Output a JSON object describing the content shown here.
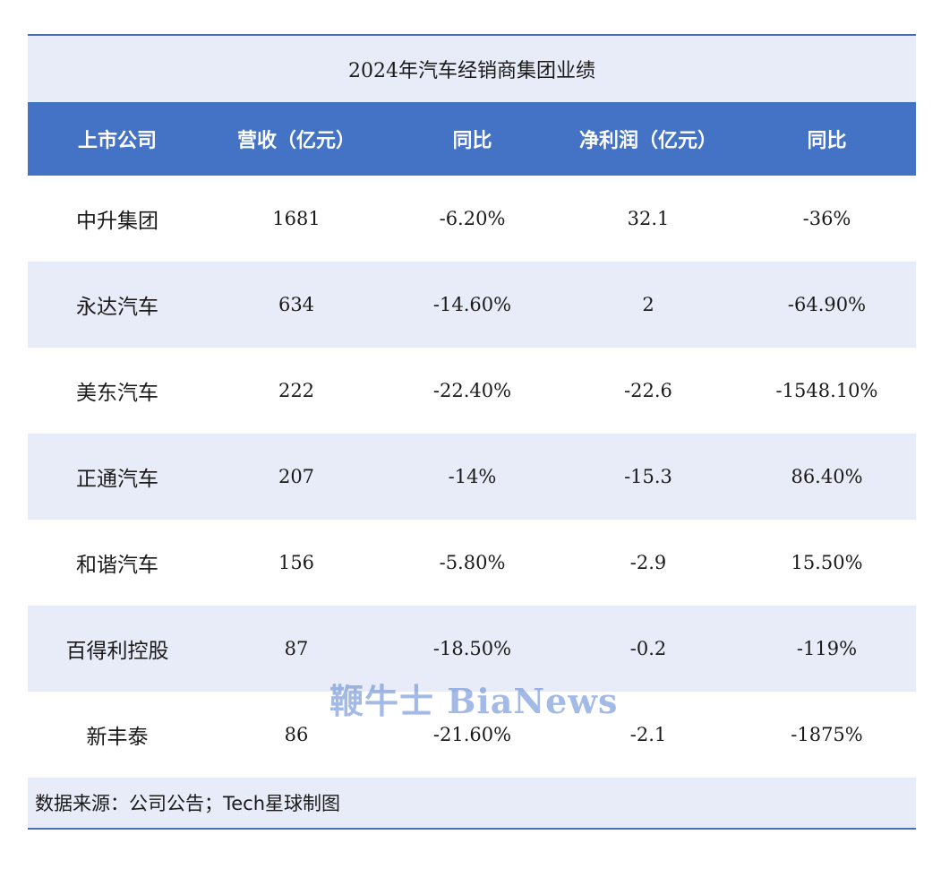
{
  "title": "2024年汽车经销商集团业绩",
  "headers": [
    "上市公司",
    "营收（亿元）",
    "同比",
    "净利润（亿元）",
    "同比"
  ],
  "rows": [
    [
      "中升集团",
      "1681",
      "-6.20%",
      "32.1",
      "-36%"
    ],
    [
      "永达汽车",
      "634",
      "-14.60%",
      "2",
      "-64.90%"
    ],
    [
      "美东汽车",
      "222",
      "-22.40%",
      "-22.6",
      "-1548.10%"
    ],
    [
      "正通汽车",
      "207",
      "-14%",
      "-15.3",
      "86.40%"
    ],
    [
      "和谐汽车",
      "156",
      "-5.80%",
      "-2.9",
      "15.50%"
    ],
    [
      "百得利控股",
      "87",
      "-18.50%",
      "-0.2",
      "-119%"
    ],
    [
      "新丰泰",
      "86",
      "-21.60%",
      "-2.1",
      "-1875%"
    ]
  ],
  "footer": "数据来源：公司公告；Tech星球制图",
  "watermark": "鞭牛士 BiaNews",
  "colors": {
    "header_bg": "#4472c4",
    "band_bg": "#e8ecf8",
    "rule": "#4a6fb5"
  }
}
